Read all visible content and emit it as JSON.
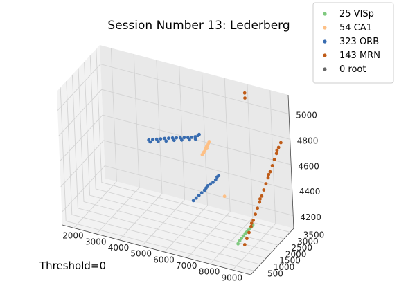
{
  "title": "Session Number 13: Lederberg",
  "annotation": "Threshold=0",
  "chart_data": {
    "type": "scatter",
    "projection": "3d",
    "title": "Session Number 13: Lederberg",
    "xlabel": "",
    "ylabel": "",
    "zlabel": "",
    "xlim": [
      1500,
      9800
    ],
    "ylim": [
      200,
      3800
    ],
    "zlim": [
      4100,
      5150
    ],
    "x_ticks": [
      2000,
      3000,
      4000,
      5000,
      6000,
      7000,
      8000,
      9000
    ],
    "y_ticks": [
      500,
      1000,
      1500,
      2000,
      2500,
      3000,
      3500
    ],
    "z_ticks": [
      4200,
      4400,
      4600,
      4800,
      5000
    ],
    "z_tick_labels": [
      "4200",
      "4400",
      "4600",
      "4800",
      "5000"
    ],
    "grid": true,
    "legend_position": "top-right",
    "legend": [
      "25 VISp",
      "54 CA1",
      "323 ORB",
      "143 MRN",
      "0 root"
    ],
    "series": [
      {
        "name": "25 VISp",
        "color": "#7fc97f",
        "points": [
          [
            8900,
            900,
            4230
          ],
          [
            8950,
            960,
            4250
          ],
          [
            9000,
            1020,
            4265
          ],
          [
            9050,
            1080,
            4280
          ],
          [
            9100,
            1140,
            4295
          ],
          [
            9150,
            1180,
            4305
          ],
          [
            9200,
            1230,
            4318
          ],
          [
            9250,
            1290,
            4330
          ],
          [
            9300,
            1340,
            4342
          ],
          [
            9330,
            1380,
            4350
          ]
        ]
      },
      {
        "name": "54 CA1",
        "color": "#fdc086",
        "points": [
          [
            6500,
            2650,
            4640
          ],
          [
            6550,
            2680,
            4655
          ],
          [
            6600,
            2700,
            4670
          ],
          [
            6620,
            2720,
            4685
          ],
          [
            6650,
            2740,
            4700
          ],
          [
            6700,
            2760,
            4712
          ],
          [
            6720,
            2780,
            4725
          ],
          [
            6680,
            2720,
            4690
          ],
          [
            6560,
            2690,
            4660
          ],
          [
            6750,
            2800,
            4740
          ],
          [
            7000,
            3400,
            4260
          ]
        ]
      },
      {
        "name": "323 ORB",
        "color": "#386cb0",
        "points": [
          [
            3950,
            3000,
            4600
          ],
          [
            4100,
            3050,
            4605
          ],
          [
            4250,
            3100,
            4610
          ],
          [
            4400,
            3150,
            4615
          ],
          [
            4550,
            3200,
            4620
          ],
          [
            4700,
            3250,
            4624
          ],
          [
            4850,
            3300,
            4628
          ],
          [
            5000,
            3340,
            4632
          ],
          [
            5150,
            3380,
            4636
          ],
          [
            5300,
            3420,
            4640
          ],
          [
            5450,
            3450,
            4644
          ],
          [
            5600,
            3480,
            4650
          ],
          [
            5750,
            3500,
            4660
          ],
          [
            5860,
            3530,
            4672
          ],
          [
            5900,
            3550,
            4680
          ],
          [
            4000,
            3020,
            4585
          ],
          [
            4300,
            3120,
            4592
          ],
          [
            4600,
            3220,
            4600
          ],
          [
            4900,
            3320,
            4610
          ],
          [
            5200,
            3400,
            4618
          ],
          [
            5500,
            3470,
            4628
          ],
          [
            5750,
            3510,
            4640
          ],
          [
            6300,
            2150,
            4320
          ],
          [
            6400,
            2200,
            4340
          ],
          [
            6500,
            2250,
            4360
          ],
          [
            6600,
            2300,
            4380
          ],
          [
            6700,
            2350,
            4400
          ],
          [
            6750,
            2400,
            4415
          ],
          [
            6800,
            2450,
            4430
          ],
          [
            6900,
            2480,
            4445
          ],
          [
            7000,
            2520,
            4460
          ],
          [
            7100,
            2560,
            4480
          ],
          [
            7150,
            2600,
            4500
          ],
          [
            7200,
            2640,
            4510
          ]
        ]
      },
      {
        "name": "143 MRN",
        "color": "#bf5b17",
        "points": [
          [
            8950,
            1350,
            4180
          ],
          [
            9000,
            1450,
            4220
          ],
          [
            9050,
            1550,
            4260
          ],
          [
            9100,
            1650,
            4300
          ],
          [
            9150,
            1750,
            4340
          ],
          [
            9200,
            1850,
            4380
          ],
          [
            9250,
            1950,
            4420
          ],
          [
            9300,
            2050,
            4460
          ],
          [
            9350,
            2150,
            4500
          ],
          [
            9400,
            2250,
            4540
          ],
          [
            9450,
            2350,
            4580
          ],
          [
            9500,
            2450,
            4620
          ],
          [
            9550,
            2550,
            4660
          ],
          [
            9600,
            2650,
            4700
          ],
          [
            9650,
            2750,
            4740
          ],
          [
            9700,
            2850,
            4780
          ],
          [
            9750,
            2950,
            4820
          ],
          [
            9800,
            3050,
            4850
          ],
          [
            9100,
            1700,
            4320
          ],
          [
            9300,
            2100,
            4480
          ],
          [
            9500,
            2500,
            4640
          ],
          [
            9700,
            2900,
            4800
          ],
          [
            8200,
            3200,
            5150
          ],
          [
            8200,
            3200,
            5110
          ]
        ]
      },
      {
        "name": "0 root",
        "color": "#666666",
        "points": []
      }
    ]
  }
}
